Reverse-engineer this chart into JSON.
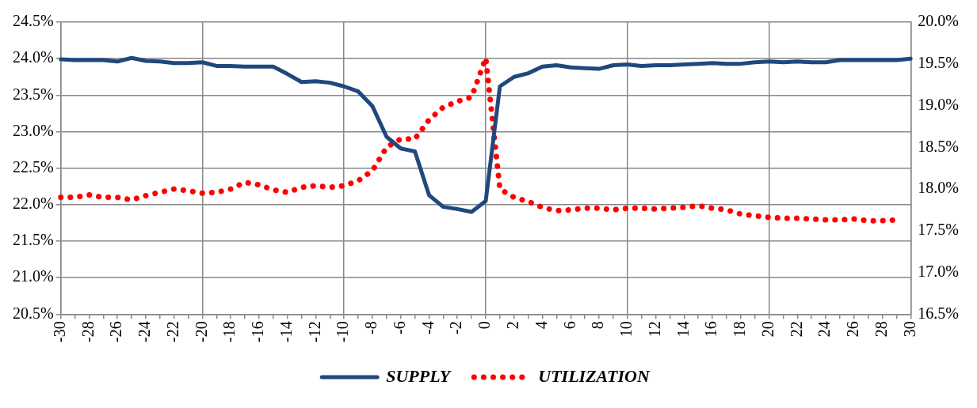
{
  "chart_data": {
    "type": "line",
    "categories": [
      "-30",
      null,
      "-28",
      null,
      "-26",
      null,
      "-24",
      null,
      "-22",
      null,
      "-20",
      null,
      "-18",
      null,
      "-16",
      null,
      "-14",
      null,
      "-12",
      null,
      "-10",
      null,
      "-8",
      null,
      "-6",
      null,
      "-4",
      null,
      "-2",
      null,
      "0",
      null,
      "2",
      null,
      "4",
      null,
      "6",
      null,
      "8",
      null,
      "10",
      null,
      "12",
      null,
      "14",
      null,
      "16",
      null,
      "18",
      null,
      "20",
      null,
      "22",
      null,
      "24",
      null,
      "26",
      null,
      "28",
      null,
      "30"
    ],
    "series": [
      {
        "name": "SUPPLY",
        "color": "#1f497d",
        "line_style": "solid",
        "values": [
          23.99,
          23.98,
          23.98,
          23.98,
          23.96,
          24.01,
          23.97,
          23.96,
          23.94,
          23.94,
          23.95,
          23.9,
          23.9,
          23.89,
          23.89,
          23.89,
          23.79,
          23.68,
          23.69,
          23.67,
          23.62,
          23.55,
          23.35,
          22.93,
          22.77,
          22.73,
          22.13,
          21.97,
          21.94,
          21.9,
          22.05,
          23.62,
          23.75,
          23.8,
          23.89,
          23.91,
          23.88,
          23.87,
          23.86,
          23.91,
          23.92,
          23.9,
          23.91,
          23.91,
          23.92,
          23.93,
          23.94,
          23.93,
          23.93,
          23.95,
          23.96,
          23.95,
          23.96,
          23.95,
          23.95,
          23.98,
          23.98,
          23.98,
          23.98,
          23.98,
          24.0
        ]
      },
      {
        "name": "UTILIZATION",
        "color": "#ff0000",
        "axis": "y2",
        "line_style": "dotted",
        "values": [
          17.9,
          17.9,
          17.93,
          17.9,
          17.9,
          17.87,
          17.92,
          17.96,
          18.0,
          17.98,
          17.95,
          17.96,
          18.0,
          18.08,
          18.05,
          17.99,
          17.96,
          18.02,
          18.04,
          18.02,
          18.04,
          18.1,
          18.22,
          18.5,
          18.6,
          18.6,
          18.83,
          18.98,
          19.05,
          19.1,
          19.57,
          18.0,
          17.9,
          17.85,
          17.78,
          17.74,
          17.75,
          17.77,
          17.77,
          17.75,
          17.77,
          17.77,
          17.76,
          17.77,
          17.78,
          17.8,
          17.77,
          17.75,
          17.7,
          17.68,
          17.66,
          17.65,
          17.65,
          17.64,
          17.63,
          17.63,
          17.64,
          17.62,
          17.62,
          17.63,
          null
        ]
      }
    ],
    "ylim": [
      20.5,
      24.5
    ],
    "yticks": [
      {
        "value": 20.5,
        "label": "20.5%"
      },
      {
        "value": 21,
        "label": "21.0%"
      },
      {
        "value": 21.5,
        "label": "21.5%"
      },
      {
        "value": 22,
        "label": "22.0%"
      },
      {
        "value": 22.5,
        "label": "22.5%"
      },
      {
        "value": 23,
        "label": "23.0%"
      },
      {
        "value": 23.5,
        "label": "23.5%"
      },
      {
        "value": 24,
        "label": "24.0%"
      },
      {
        "value": 24.5,
        "label": "24.5%"
      }
    ],
    "y2lim": [
      16.5,
      20
    ],
    "y2ticks": [
      {
        "value": 16.5,
        "label": "16.5%"
      },
      {
        "value": 17,
        "label": "17.0%"
      },
      {
        "value": 17.5,
        "label": "17.5%"
      },
      {
        "value": 18,
        "label": "18.0%"
      },
      {
        "value": 18.5,
        "label": "18.5%"
      },
      {
        "value": 19,
        "label": "19.0%"
      },
      {
        "value": 19.5,
        "label": "19.5%"
      },
      {
        "value": 20,
        "label": "20.0%"
      }
    ],
    "grid": true,
    "legend": "bottom",
    "marker": "none"
  }
}
